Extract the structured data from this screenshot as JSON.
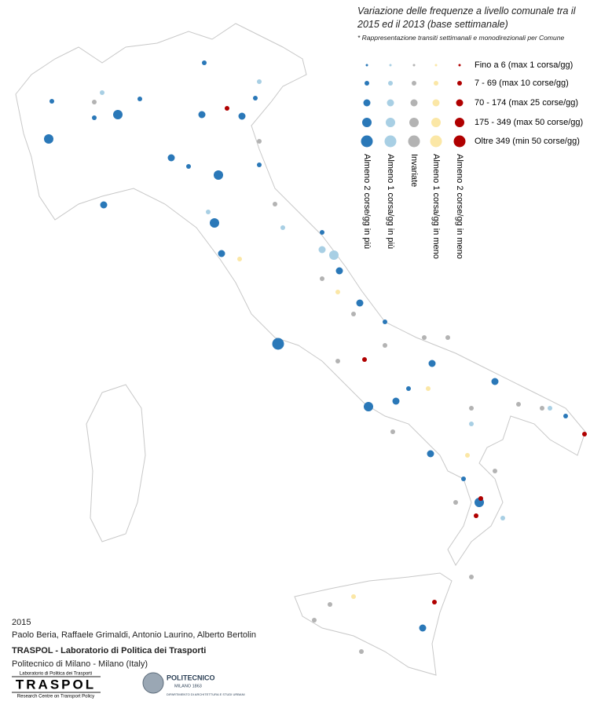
{
  "title": "Variazione delle frequenze a livello comunale tra il 2015 ed il 2013 (base settimanale)",
  "note": "* Rappresentazione transiti settimanali e monodirezionali per Comune",
  "legend": {
    "sizes": [
      "Fino a 6 (max 1 corsa/gg)",
      "7 - 69 (max 10 corse/gg)",
      "70 - 174 (max 25 corse/gg)",
      "175 - 349 (max 50 corse/gg)",
      "Oltre 349 (min 50 corse/gg)"
    ],
    "classes": [
      {
        "label": "Almeno 2 corse/gg in più",
        "color": "#2a78b8"
      },
      {
        "label": "Almeno 1 corsa/gg in più",
        "color": "#a8cfe4"
      },
      {
        "label": "Invariate",
        "color": "#b3b3b3"
      },
      {
        "label": "Almeno 1 corsa/gg in meno",
        "color": "#fbe7a6"
      },
      {
        "label": "Almeno 2 corse/gg in meno",
        "color": "#b00000"
      }
    ]
  },
  "credits": {
    "year": "2015",
    "authors": "Paolo Beria, Raffaele Grimaldi, Antonio Laurino, Alberto Bertolin",
    "lab": "TRASPOL - Laboratorio di Politica dei Trasporti",
    "institution": "Politecnico di Milano - Milano (Italy)"
  },
  "logos": {
    "traspol": {
      "top": "Laboratorio di Politica dei Trasporti",
      "name": "TRASPOL",
      "bottom": "Research Centre on Transport Policy"
    },
    "polimi": {
      "name": "POLITECNICO",
      "city": "MILANO 1863",
      "dept": "DIPARTIMENTO DI ARCHITETTURA E STUDI URBANI"
    }
  }
}
